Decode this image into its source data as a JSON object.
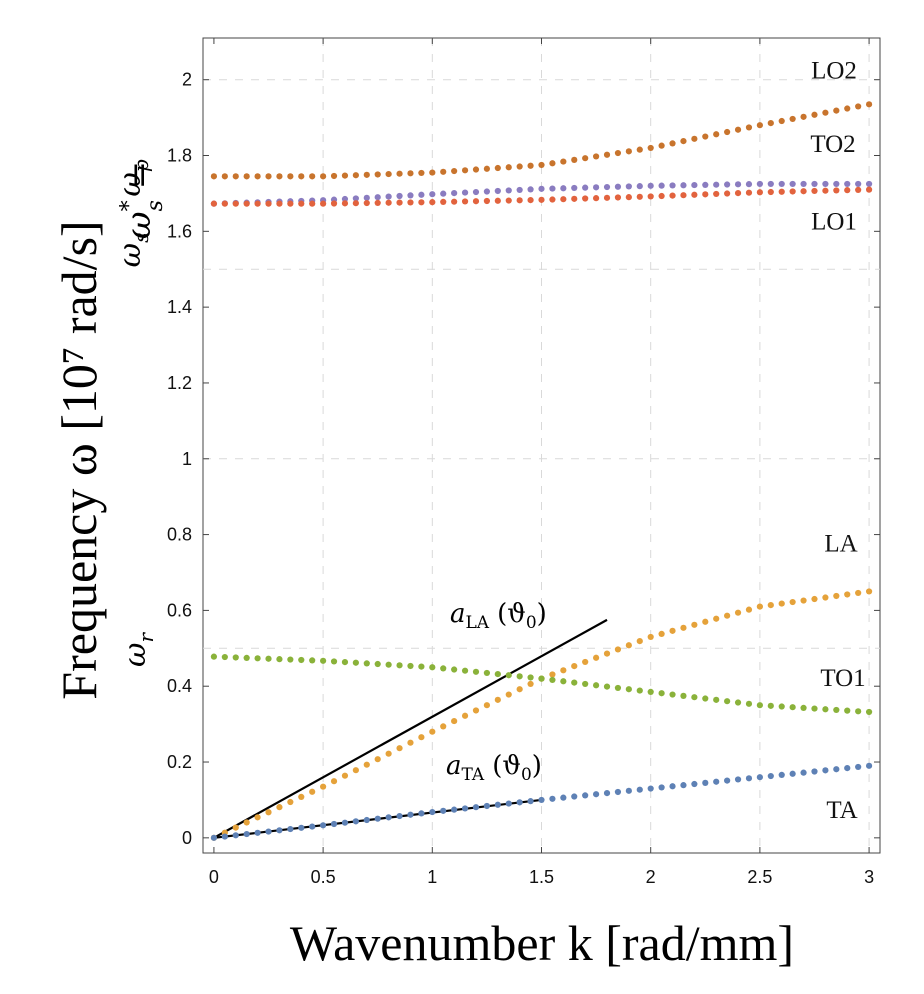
{
  "chart_data": {
    "type": "scatter",
    "xlabel": "Wavenumber k [rad/mm]",
    "ylabel": "Frequency ω [10⁷ rad/s]",
    "xlim": [
      -0.05,
      3.05
    ],
    "ylim": [
      -0.04,
      2.11
    ],
    "xticks": [
      "0",
      "0.5",
      "1",
      "1.5",
      "2",
      "2.5",
      "3"
    ],
    "yticks": [
      "0",
      "0.2",
      "0.4",
      "0.6",
      "0.8",
      "1",
      "1.2",
      "1.4",
      "1.6",
      "1.8",
      "2"
    ],
    "grid_x": [
      0.5,
      1,
      1.5,
      2,
      2.5,
      3
    ],
    "grid_y": [
      0.5,
      1,
      1.5,
      2
    ],
    "series": [
      {
        "name": "LO2",
        "color": "#C8742D",
        "x": [
          0,
          0.5,
          1,
          1.5,
          2,
          2.5,
          3
        ],
        "y": [
          1.745,
          1.745,
          1.755,
          1.775,
          1.82,
          1.88,
          1.935
        ]
      },
      {
        "name": "TO2",
        "color": "#8A7CC0",
        "x": [
          0,
          0.5,
          1,
          1.5,
          2,
          2.5,
          3
        ],
        "y": [
          1.673,
          1.682,
          1.698,
          1.712,
          1.72,
          1.725,
          1.725
        ]
      },
      {
        "name": "LO1",
        "color": "#E2633E",
        "x": [
          0,
          0.5,
          1,
          1.5,
          2,
          2.5,
          3
        ],
        "y": [
          1.673,
          1.673,
          1.677,
          1.683,
          1.692,
          1.703,
          1.71
        ]
      },
      {
        "name": "LA",
        "color": "#E5A23A",
        "x": [
          0,
          0.5,
          1,
          1.5,
          2,
          2.5,
          3
        ],
        "y": [
          0,
          0.135,
          0.28,
          0.42,
          0.53,
          0.61,
          0.65
        ]
      },
      {
        "name": "TO1",
        "color": "#8AB23A",
        "x": [
          0,
          0.5,
          1,
          1.5,
          2,
          2.5,
          3
        ],
        "y": [
          0.478,
          0.467,
          0.45,
          0.42,
          0.385,
          0.35,
          0.332
        ]
      },
      {
        "name": "TA",
        "color": "#5E81B5",
        "x": [
          0,
          0.5,
          1,
          1.5,
          2,
          2.5,
          3
        ],
        "y": [
          0,
          0.033,
          0.068,
          0.1,
          0.13,
          0.16,
          0.19
        ]
      }
    ],
    "reference_lines": [
      {
        "name": "a_LA",
        "label_base": "a",
        "label_sub": "LA",
        "label_arg": "(ϑ",
        "label_arg_sub": "0",
        "label_close": ")",
        "x": [
          0,
          1.8
        ],
        "y": [
          0,
          0.575
        ],
        "color": "#000000"
      },
      {
        "name": "a_TA",
        "label_base": "a",
        "label_sub": "TA",
        "label_arg": "(ϑ",
        "label_arg_sub": "0",
        "label_close": ")",
        "x": [
          0,
          1.5
        ],
        "y": [
          0,
          0.1
        ],
        "color": "#000000"
      }
    ],
    "axis_annotations": [
      {
        "name": "omega-s-star",
        "base": "ω",
        "sup": "*",
        "sub": "s",
        "suffix": " ="
      },
      {
        "name": "omega-p",
        "base": "ω",
        "sub": "p"
      },
      {
        "name": "omega-s",
        "base": "ω",
        "sub": "s"
      },
      {
        "name": "omega-r",
        "base": "ω",
        "sub": "r"
      }
    ]
  }
}
